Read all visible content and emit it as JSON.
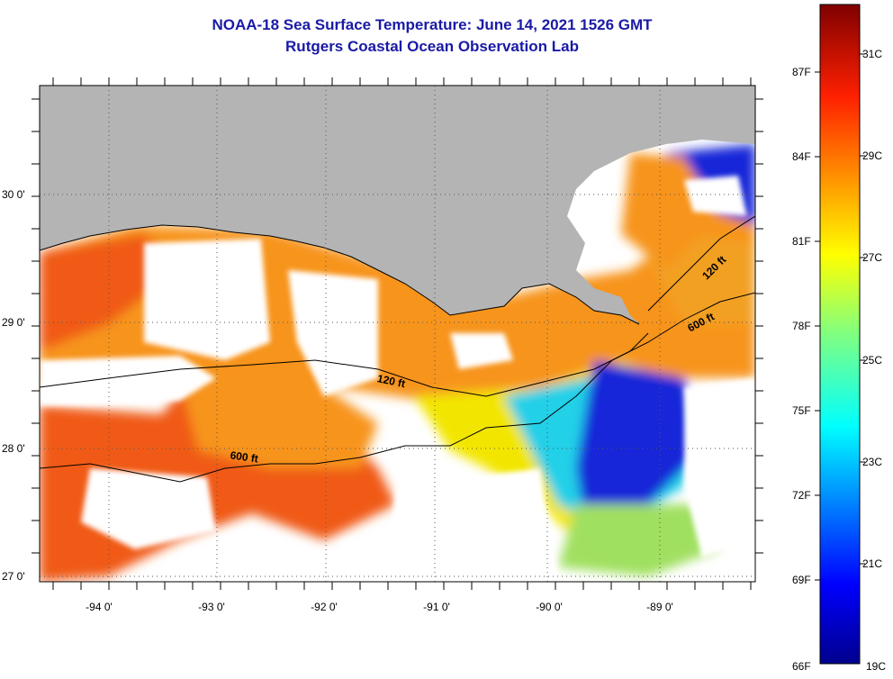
{
  "header": {
    "title": "NOAA-18 Sea Surface Temperature:  June 14, 2021 1526 GMT",
    "subtitle": "Rutgers Coastal Ocean Observation Lab"
  },
  "map": {
    "lon_range": [
      -94.6,
      -88.3
    ],
    "lat_range": [
      26.95,
      30.85
    ],
    "lon_ticks": [
      "-94 0'",
      "-93 0'",
      "-92 0'",
      "-91 0'",
      "-90 0'",
      "-89 0'"
    ],
    "lon_tick_values": [
      -94,
      -93,
      -92,
      -91,
      -90,
      -89
    ],
    "lat_ticks": [
      "27 0'",
      "28 0'",
      "29 0'",
      "30 0'"
    ],
    "lat_tick_values": [
      27,
      28,
      29,
      30
    ],
    "contours": [
      {
        "label": "120 ft"
      },
      {
        "label": "600 ft"
      },
      {
        "label": "600 ft"
      },
      {
        "label": "120 ft"
      }
    ],
    "colors": {
      "land": "#b4b4b4",
      "cloud": "#ffffff",
      "warm": "#f05a14",
      "orange": "#f7941d",
      "yellow": "#f2e600",
      "cyan": "#20d0e8",
      "blue": "#1428d8"
    }
  },
  "colorbar": {
    "fahrenheit": [
      "87F",
      "84F",
      "81F",
      "78F",
      "75F",
      "72F",
      "69F",
      "66F"
    ],
    "celsius": [
      "31C",
      "29C",
      "27C",
      "25C",
      "23C",
      "21C",
      "19C"
    ]
  }
}
